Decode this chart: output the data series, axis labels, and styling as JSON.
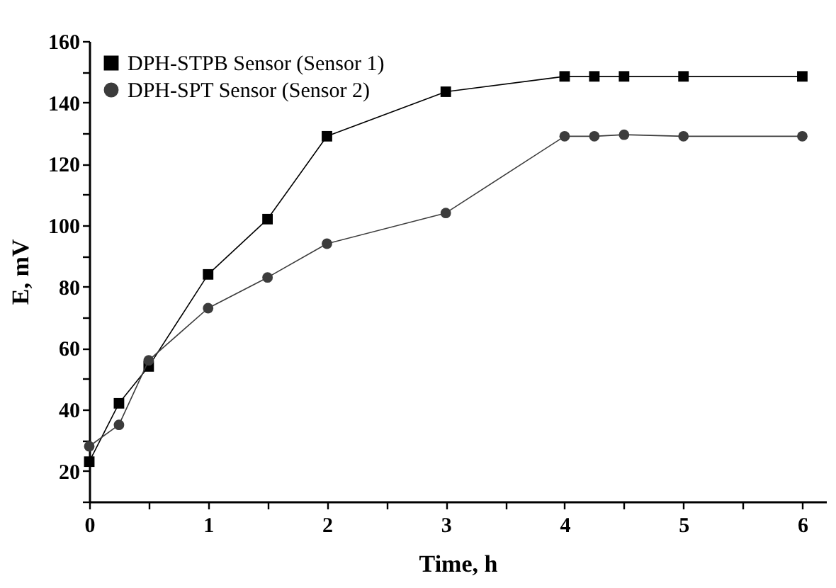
{
  "chart_data": {
    "type": "line",
    "xlabel": "Time, h",
    "ylabel": "E, mV",
    "xlim": [
      0,
      6.2
    ],
    "ylim": [
      10,
      160
    ],
    "xticks": [
      0,
      {
        "value": 0.5,
        "label": null
      },
      1,
      {
        "value": 1.5,
        "label": null
      },
      2,
      {
        "value": 2.5,
        "label": null
      },
      3,
      {
        "value": 3.5,
        "label": null
      },
      4,
      {
        "value": 4.5,
        "label": null
      },
      5,
      {
        "value": 5.5,
        "label": null
      },
      6
    ],
    "yticks": [
      {
        "value": 10,
        "label": null
      },
      20,
      {
        "value": 30,
        "label": null
      },
      40,
      {
        "value": 50,
        "label": null
      },
      60,
      {
        "value": 70,
        "label": null
      },
      80,
      {
        "value": 90,
        "label": null
      },
      100,
      {
        "value": 110,
        "label": null
      },
      120,
      {
        "value": 130,
        "label": null
      },
      140,
      {
        "value": 150,
        "label": null
      },
      160
    ],
    "x": [
      0,
      0.25,
      0.5,
      1,
      1.5,
      2,
      3,
      4,
      4.25,
      4.5,
      5,
      6
    ],
    "legend": "top left",
    "grid": false,
    "series": [
      {
        "name": "DPH-STPB Sensor (Sensor 1)",
        "color": "#000000",
        "marker": "square",
        "values": [
          23,
          42,
          54,
          84,
          102,
          129,
          143.5,
          148.5,
          148.5,
          148.5,
          148.5,
          148.5
        ]
      },
      {
        "name": "DPH-SPT Sensor (Sensor 2)",
        "color": "#3c3c3c",
        "marker": "circle",
        "values": [
          28,
          35,
          56,
          73,
          83,
          94,
          104,
          129,
          129,
          129.5,
          129,
          129
        ]
      }
    ]
  }
}
